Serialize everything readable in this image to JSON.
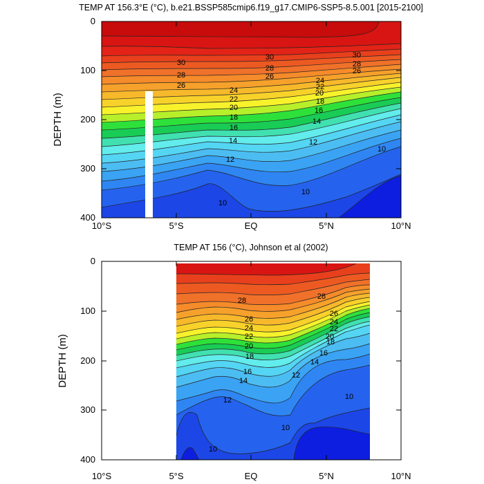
{
  "chart_data": [
    {
      "type": "contour",
      "title": "TEMP AT 156.3°E (°C), b.e21.BSSP585cmip6.f19_g17.CMIP6-SSP5-8.5.001 [2015-2100]",
      "xlabel": "",
      "ylabel": "DEPTH (m)",
      "xlim": [
        -10,
        10
      ],
      "ylim": [
        400,
        0
      ],
      "x_ticks": [
        -10,
        -5,
        0,
        5,
        10
      ],
      "x_tick_labels": [
        "10°S",
        "5°S",
        "EQ",
        "5°N",
        "10°N"
      ],
      "y_ticks": [
        0,
        100,
        200,
        300,
        400
      ],
      "y_tick_labels": [
        "0",
        "100",
        "200",
        "300",
        "400"
      ],
      "contour_interval": 1,
      "levels": [
        9,
        10,
        11,
        12,
        13,
        14,
        15,
        16,
        17,
        18,
        19,
        20,
        21,
        22,
        23,
        24,
        25,
        26,
        27,
        28,
        29,
        30,
        31
      ],
      "labeled_isotherms": [
        {
          "value": "30",
          "depths": [
            {
              "lat": -5.2,
              "depth": 86
            },
            {
              "lat": 1.1,
              "depth": 74
            },
            {
              "lat": 7.3,
              "depth": 68
            }
          ]
        },
        {
          "value": "28",
          "depths": [
            {
              "lat": -5.2,
              "depth": 105
            },
            {
              "lat": 1.2,
              "depth": 94
            },
            {
              "lat": 7.3,
              "depth": 86
            }
          ]
        },
        {
          "value": "26",
          "depths": [
            {
              "lat": -5.2,
              "depth": 124
            },
            {
              "lat": 1.2,
              "depth": 110
            },
            {
              "lat": 7.2,
              "depth": 101
            }
          ]
        },
        {
          "value": "24",
          "depths": [
            {
              "lat": -1.2,
              "depth": 141
            },
            {
              "lat": 4.6,
              "depth": 122
            }
          ]
        },
        {
          "value": "22",
          "depths": [
            {
              "lat": -1.2,
              "depth": 157
            },
            {
              "lat": 4.6,
              "depth": 134
            }
          ]
        },
        {
          "value": "20",
          "depths": [
            {
              "lat": -1.2,
              "depth": 173
            },
            {
              "lat": 4.5,
              "depth": 147
            }
          ]
        },
        {
          "value": "18",
          "depths": [
            {
              "lat": -1.2,
              "depth": 193
            },
            {
              "lat": 4.6,
              "depth": 163
            }
          ]
        },
        {
          "value": "16",
          "depths": [
            {
              "lat": -1.2,
              "depth": 214
            },
            {
              "lat": 4.6,
              "depth": 183
            }
          ]
        },
        {
          "value": "14",
          "depths": [
            {
              "lat": -1.3,
              "depth": 240
            },
            {
              "lat": 4.4,
              "depth": 208
            }
          ]
        },
        {
          "value": "12",
          "depths": [
            {
              "lat": -1.6,
              "depth": 279
            },
            {
              "lat": 4.0,
              "depth": 244
            }
          ]
        },
        {
          "value": "10",
          "depths": [
            {
              "lat": -2.0,
              "depth": 372
            },
            {
              "lat": 3.5,
              "depth": 347
            },
            {
              "lat": 8.6,
              "depth": 260
            }
          ]
        }
      ],
      "missing_data": [
        {
          "lat_from": -7.2,
          "lat_to": -6.6,
          "depth_from": 145,
          "depth_to": 400
        }
      ]
    },
    {
      "type": "contour",
      "title": "TEMP AT 156 (°C), Johnson et al (2002)",
      "xlabel": "",
      "ylabel": "DEPTH (m)",
      "xlim": [
        -10,
        10
      ],
      "ylim": [
        400,
        0
      ],
      "x_ticks": [
        -10,
        -5,
        0,
        5,
        10
      ],
      "x_tick_labels": [
        "10°S",
        "5°S",
        "EQ",
        "5°N",
        "10°N"
      ],
      "y_ticks": [
        0,
        100,
        200,
        300,
        400
      ],
      "y_tick_labels": [
        "0",
        "100",
        "200",
        "300",
        "400"
      ],
      "data_extent_lat": [
        -5,
        8
      ],
      "contour_interval": 1,
      "levels": [
        9,
        10,
        11,
        12,
        13,
        14,
        15,
        16,
        17,
        18,
        19,
        20,
        21,
        22,
        23,
        24,
        25,
        26,
        27,
        28,
        29
      ],
      "labeled_isotherms": [
        {
          "value": "28",
          "depths": [
            {
              "lat": -0.6,
              "depth": 79
            },
            {
              "lat": 4.8,
              "depth": 70
            }
          ]
        },
        {
          "value": "26",
          "depths": [
            {
              "lat": -0.3,
              "depth": 115
            },
            {
              "lat": 6.1,
              "depth": 103
            }
          ]
        },
        {
          "value": "24",
          "depths": [
            {
              "lat": -0.3,
              "depth": 133
            },
            {
              "lat": 6.1,
              "depth": 120
            }
          ]
        },
        {
          "value": "22",
          "depths": [
            {
              "lat": -0.3,
              "depth": 150
            },
            {
              "lat": 6.1,
              "depth": 133
            }
          ]
        },
        {
          "value": "20",
          "depths": [
            {
              "lat": -0.3,
              "depth": 170
            },
            {
              "lat": 5.6,
              "depth": 150
            }
          ]
        },
        {
          "value": "18",
          "depths": [
            {
              "lat": -0.1,
              "depth": 190
            },
            {
              "lat": 5.7,
              "depth": 162
            }
          ]
        },
        {
          "value": "16",
          "depths": [
            {
              "lat": -0.5,
              "depth": 220
            },
            {
              "lat": 4.8,
              "depth": 185
            }
          ]
        },
        {
          "value": "14",
          "depths": [
            {
              "lat": -1.0,
              "depth": 240
            },
            {
              "lat": 4.2,
              "depth": 203
            }
          ]
        },
        {
          "value": "12",
          "depths": [
            {
              "lat": -1.6,
              "depth": 280
            },
            {
              "lat": 3.2,
              "depth": 226
            }
          ]
        },
        {
          "value": "10",
          "depths": [
            {
              "lat": -2.6,
              "depth": 380
            },
            {
              "lat": 2.4,
              "depth": 337
            },
            {
              "lat": 7.0,
              "depth": 271
            }
          ]
        }
      ]
    }
  ]
}
